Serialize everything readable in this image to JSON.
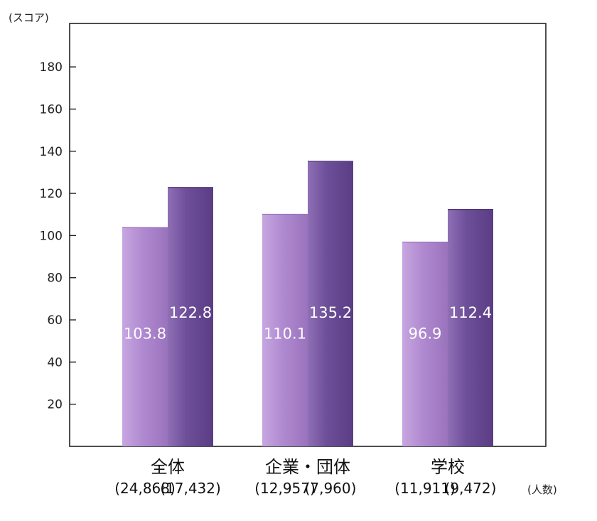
{
  "chart_data": {
    "type": "bar",
    "title": "",
    "xlabel": "",
    "ylabel": "(スコア)",
    "count_unit": "(人数)",
    "ylim": [
      0,
      200
    ],
    "yticks": [
      20,
      40,
      60,
      80,
      100,
      120,
      140,
      160,
      180
    ],
    "grid": false,
    "categories": [
      "全体",
      "企業・団体",
      "学校"
    ],
    "series": [
      {
        "values": [
          103.8,
          110.1,
          96.9
        ],
        "labels": [
          "103.8",
          "110.1",
          "96.9"
        ],
        "counts": [
          "(24,868)",
          "(12,957)",
          "(11,911)"
        ],
        "color": "#a97fc9",
        "color_light": "#c39fdd",
        "color_dark": "#9066b3"
      },
      {
        "values": [
          122.8,
          135.2,
          112.4
        ],
        "labels": [
          "122.8",
          "135.2",
          "112.4"
        ],
        "counts": [
          "(17,432)",
          "(7,960)",
          "(9,472)"
        ],
        "color": "#6e4f99",
        "color_light": "#8a6cb2",
        "color_dark": "#5a3d84"
      }
    ]
  }
}
